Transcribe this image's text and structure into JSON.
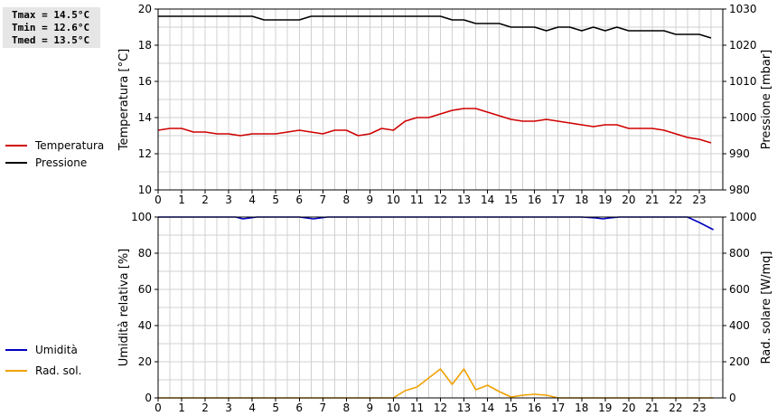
{
  "stats": {
    "tmax": "Tmax = 14.5°C",
    "tmin": "Tmin = 12.6°C",
    "tmed": "Tmed = 13.5°C"
  },
  "x_ticks": [
    "0",
    "1",
    "2",
    "3",
    "4",
    "5",
    "6",
    "7",
    "8",
    "9",
    "10",
    "11",
    "12",
    "13",
    "14",
    "15",
    "16",
    "17",
    "18",
    "19",
    "20",
    "21",
    "22",
    "23"
  ],
  "chart_data": [
    {
      "type": "line",
      "ylabel": "Temperatura [°C]",
      "y2label": "Pressione [mbar]",
      "ylim": [
        10,
        20
      ],
      "y2lim": [
        980,
        1030
      ],
      "yticks": [
        "10",
        "12",
        "14",
        "16",
        "18",
        "20"
      ],
      "y2ticks": [
        "980",
        "990",
        "1000",
        "1010",
        "1020",
        "1030"
      ],
      "xlim": [
        0,
        24
      ],
      "grid": true,
      "legend": [
        {
          "label": "Temperatura",
          "color": "#d00000"
        },
        {
          "label": "Pressione",
          "color": "#000000"
        }
      ],
      "series": [
        {
          "name": "Temperatura",
          "axis": "left",
          "color": "#d00000",
          "x": [
            0,
            0.5,
            1,
            1.5,
            2,
            2.5,
            3,
            3.5,
            4,
            4.5,
            5,
            5.5,
            6,
            6.5,
            7,
            7.5,
            8,
            8.5,
            9,
            9.5,
            10,
            10.5,
            11,
            11.5,
            12,
            12.5,
            13,
            13.5,
            14,
            14.5,
            15,
            15.5,
            16,
            16.5,
            17,
            17.5,
            18,
            18.5,
            19,
            19.5,
            20,
            20.5,
            21,
            21.5,
            22,
            22.5,
            23,
            23.5
          ],
          "y": [
            13.3,
            13.4,
            13.4,
            13.2,
            13.2,
            13.1,
            13.1,
            13.0,
            13.1,
            13.1,
            13.1,
            13.2,
            13.3,
            13.2,
            13.1,
            13.3,
            13.3,
            13.0,
            13.1,
            13.4,
            13.3,
            13.8,
            14.0,
            14.0,
            14.2,
            14.4,
            14.5,
            14.5,
            14.3,
            14.1,
            13.9,
            13.8,
            13.8,
            13.9,
            13.8,
            13.7,
            13.6,
            13.5,
            13.6,
            13.6,
            13.4,
            13.4,
            13.4,
            13.3,
            13.1,
            12.9,
            12.8,
            12.6
          ]
        },
        {
          "name": "Pressione",
          "axis": "right",
          "color": "#000000",
          "x": [
            0,
            0.5,
            1,
            1.5,
            2,
            2.5,
            3,
            3.5,
            4,
            4.5,
            5,
            5.5,
            6,
            6.5,
            7,
            7.5,
            8,
            8.5,
            9,
            9.5,
            10,
            10.5,
            11,
            11.5,
            12,
            12.5,
            13,
            13.5,
            14,
            14.5,
            15,
            15.5,
            16,
            16.5,
            17,
            17.5,
            18,
            18.5,
            19,
            19.5,
            20,
            20.5,
            21,
            21.5,
            22,
            22.5,
            23,
            23.5
          ],
          "y": [
            1028,
            1028,
            1028,
            1028,
            1028,
            1028,
            1028,
            1028,
            1028,
            1027,
            1027,
            1027,
            1027,
            1028,
            1028,
            1028,
            1028,
            1028,
            1028,
            1028,
            1028,
            1028,
            1028,
            1028,
            1028,
            1027,
            1027,
            1026,
            1026,
            1026,
            1025,
            1025,
            1025,
            1024,
            1025,
            1025,
            1024,
            1025,
            1024,
            1025,
            1024,
            1024,
            1024,
            1024,
            1023,
            1023,
            1023,
            1022
          ]
        }
      ]
    },
    {
      "type": "line",
      "ylabel": "Umidità relativa [%]",
      "y2label": "Rad. solare [W/mq]",
      "ylim": [
        0,
        100
      ],
      "y2lim": [
        0,
        1000
      ],
      "yticks": [
        "0",
        "20",
        "40",
        "60",
        "80",
        "100"
      ],
      "y2ticks": [
        "0",
        "200",
        "400",
        "600",
        "800",
        "1000"
      ],
      "xlim": [
        0,
        24
      ],
      "grid": true,
      "legend": [
        {
          "label": "Umidità",
          "color": "#0000c0"
        },
        {
          "label": "Rad. sol.",
          "color": "#f0a000"
        }
      ],
      "series": [
        {
          "name": "Umidità",
          "axis": "left",
          "color": "#0000c0",
          "x": [
            0,
            1,
            2,
            3,
            3.3,
            3.6,
            3.9,
            4.2,
            5,
            6,
            6.3,
            6.6,
            6.9,
            7.2,
            8,
            9,
            10,
            11,
            12,
            13,
            14,
            15,
            16,
            17,
            18,
            18.6,
            18.9,
            19.2,
            19.6,
            20,
            21,
            22,
            22.5,
            23,
            23.6
          ],
          "y": [
            100,
            100,
            100,
            100,
            100,
            99,
            99.5,
            100,
            100,
            100,
            99.5,
            99,
            99.5,
            100,
            100,
            100,
            100,
            100,
            100,
            100,
            100,
            100,
            100,
            100,
            100,
            99.5,
            99,
            99.5,
            100,
            100,
            100,
            100,
            100,
            97,
            93
          ]
        },
        {
          "name": "Rad. sol.",
          "axis": "right",
          "color": "#f0a000",
          "x": [
            0,
            1,
            2,
            3,
            4,
            5,
            6,
            7,
            8,
            9,
            10,
            10.5,
            11,
            11.5,
            12,
            12.5,
            13,
            13.5,
            14,
            14.5,
            15,
            15.5,
            16,
            16.5,
            17,
            18,
            19,
            20,
            21,
            22,
            23,
            23.6
          ],
          "y": [
            0,
            0,
            0,
            0,
            0,
            0,
            0,
            0,
            0,
            0,
            0,
            40,
            60,
            110,
            160,
            75,
            160,
            45,
            70,
            35,
            5,
            15,
            20,
            15,
            0,
            0,
            0,
            0,
            0,
            0,
            0,
            0
          ]
        }
      ]
    }
  ]
}
